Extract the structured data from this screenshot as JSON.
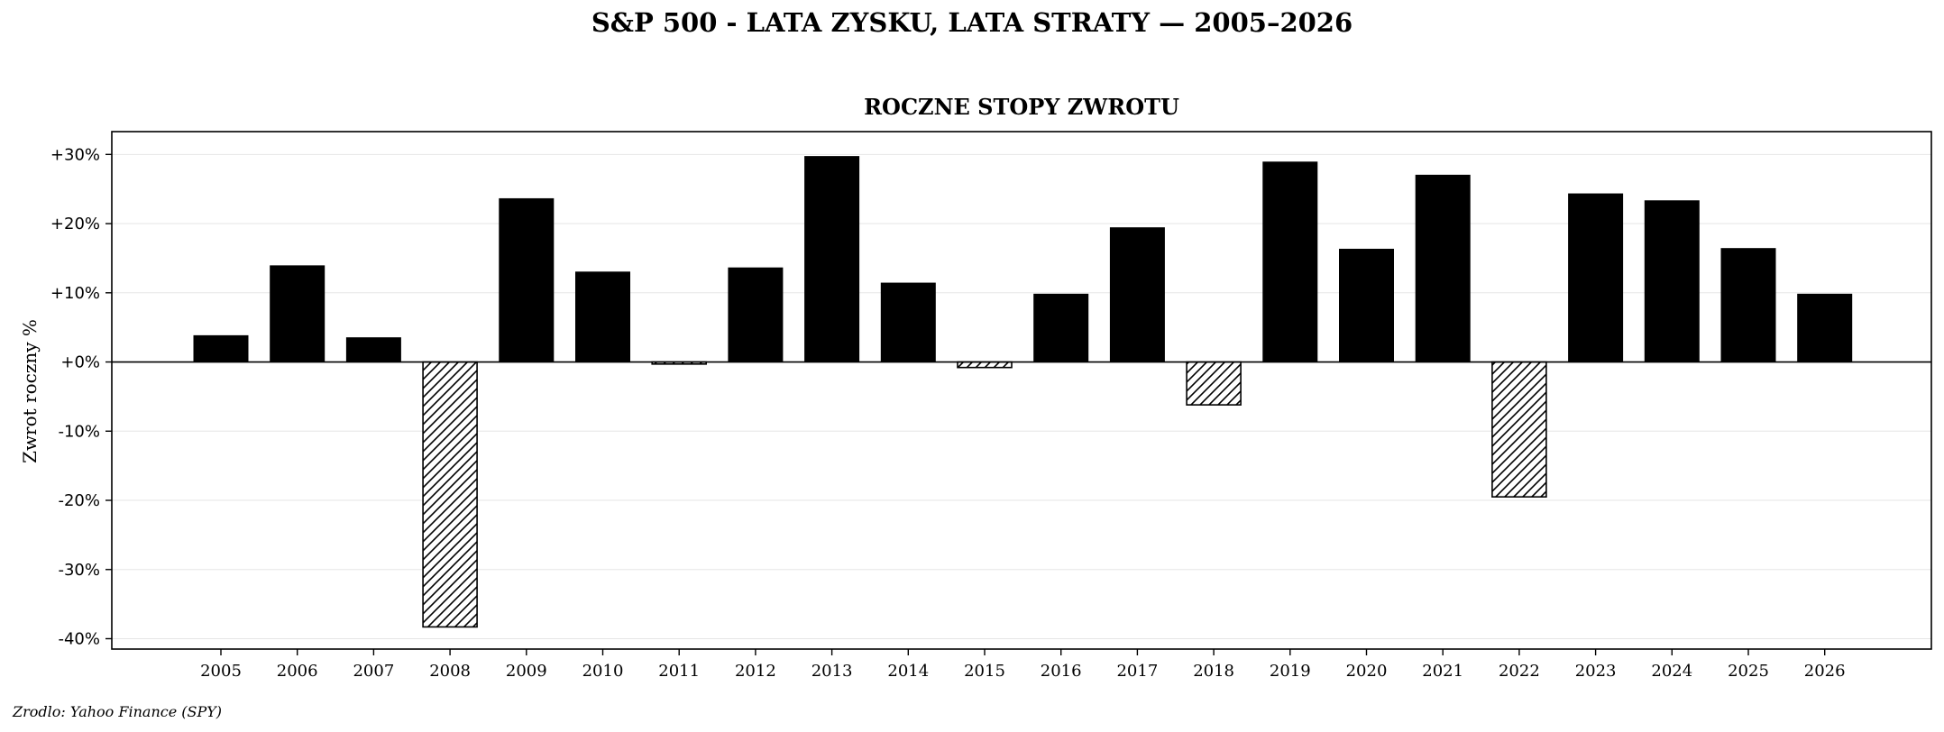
{
  "figure": {
    "suptitle": "S&P 500 - LATA ZYSKU, LATA STRATY — 2005–2026",
    "source": "Zrodlo: Yahoo Finance (SPY)"
  },
  "chart_data": {
    "type": "bar",
    "title": "ROCZNE STOPY ZWROTU",
    "xlabel": "",
    "ylabel": "Zwrot roczny %",
    "categories": [
      "2005",
      "2006",
      "2007",
      "2008",
      "2009",
      "2010",
      "2011",
      "2012",
      "2013",
      "2014",
      "2015",
      "2016",
      "2017",
      "2018",
      "2019",
      "2020",
      "2021",
      "2022",
      "2023",
      "2024",
      "2025",
      "2026"
    ],
    "values": [
      3.8,
      13.9,
      3.5,
      -38.3,
      23.6,
      13.0,
      -0.3,
      13.6,
      29.7,
      11.4,
      -0.8,
      9.8,
      19.4,
      -6.2,
      28.9,
      16.3,
      27.0,
      -19.5,
      24.3,
      23.3,
      16.4,
      9.8
    ],
    "ylim": [
      -41.5,
      33.3
    ],
    "yticks": [
      -40,
      -30,
      -20,
      -10,
      0,
      10,
      20,
      30
    ],
    "ytick_labels": [
      "-40%",
      "-30%",
      "-20%",
      "-10%",
      "+0%",
      "+10%",
      "+20%",
      "+30%"
    ],
    "grid": true,
    "colors": {
      "gain": "#000000",
      "loss_fill": "#ffffff",
      "loss_hatch": "#000000",
      "grid": "#e6e6e6",
      "zero_line": "#000000"
    }
  }
}
